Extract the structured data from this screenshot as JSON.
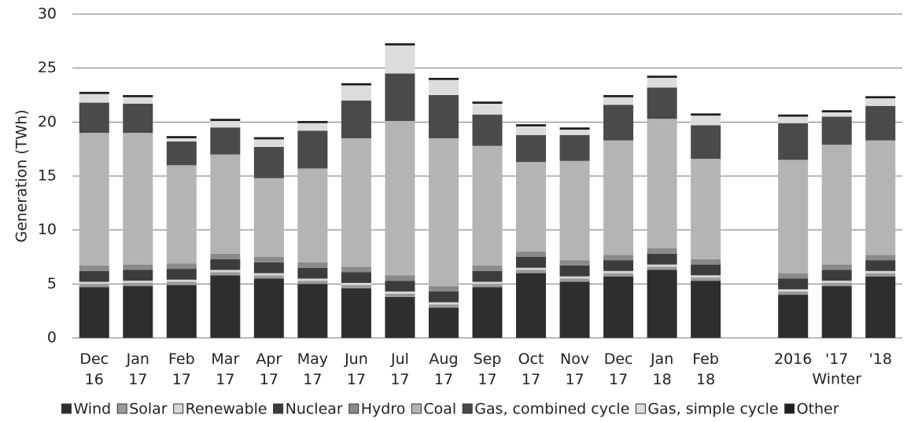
{
  "chart_data": {
    "type": "stacked_bar",
    "y_label": "Generation (TWh)",
    "annotation": "Winter",
    "categories": [
      [
        "Dec",
        "16"
      ],
      [
        "Jan",
        "17"
      ],
      [
        "Feb",
        "17"
      ],
      [
        "Mar",
        "17"
      ],
      [
        "Apr",
        "17"
      ],
      [
        "May",
        "17"
      ],
      [
        "Jun",
        "17"
      ],
      [
        "Jul",
        "17"
      ],
      [
        "Aug",
        "17"
      ],
      [
        "Sep",
        "17"
      ],
      [
        "Oct",
        "17"
      ],
      [
        "Nov",
        "17"
      ],
      [
        "Dec",
        "17"
      ],
      [
        "Jan",
        "18"
      ],
      [
        "Feb",
        "18"
      ],
      null,
      [
        "2016"
      ],
      [
        "'17"
      ],
      [
        "'18"
      ]
    ],
    "series": [
      {
        "name": "Wind",
        "color": "#2e2e2e",
        "values": [
          4.7,
          4.8,
          4.9,
          5.8,
          5.5,
          5.0,
          4.6,
          3.8,
          2.8,
          4.7,
          6.0,
          5.2,
          5.7,
          6.3,
          5.3,
          null,
          4.0,
          4.8,
          5.7
        ]
      },
      {
        "name": "Solar",
        "color": "#9a9a9a",
        "values": [
          0.3,
          0.3,
          0.3,
          0.3,
          0.3,
          0.3,
          0.3,
          0.3,
          0.3,
          0.3,
          0.3,
          0.3,
          0.3,
          0.3,
          0.3,
          null,
          0.3,
          0.3,
          0.3
        ]
      },
      {
        "name": "Renewable",
        "color": "#d6d6d6",
        "values": [
          0.2,
          0.2,
          0.2,
          0.2,
          0.2,
          0.2,
          0.2,
          0.2,
          0.2,
          0.2,
          0.2,
          0.2,
          0.2,
          0.2,
          0.2,
          null,
          0.2,
          0.2,
          0.2
        ]
      },
      {
        "name": "Nuclear",
        "color": "#3c3c3c",
        "values": [
          1.0,
          1.0,
          1.0,
          1.0,
          1.0,
          1.0,
          1.0,
          1.0,
          1.0,
          1.0,
          1.0,
          1.0,
          1.0,
          1.0,
          1.0,
          null,
          1.0,
          1.0,
          1.0
        ]
      },
      {
        "name": "Hydro",
        "color": "#8a8a8a",
        "values": [
          0.5,
          0.5,
          0.5,
          0.5,
          0.5,
          0.5,
          0.5,
          0.5,
          0.5,
          0.5,
          0.5,
          0.5,
          0.5,
          0.5,
          0.5,
          null,
          0.5,
          0.5,
          0.5
        ]
      },
      {
        "name": "Coal",
        "color": "#b4b4b4",
        "values": [
          12.3,
          12.2,
          9.1,
          9.2,
          7.3,
          8.7,
          11.9,
          14.3,
          13.7,
          11.1,
          8.3,
          9.2,
          10.6,
          12.0,
          9.3,
          null,
          10.5,
          11.1,
          10.6
        ]
      },
      {
        "name": "Gas, combined cycle",
        "color": "#4a4a4a",
        "values": [
          2.8,
          2.7,
          2.2,
          2.5,
          2.9,
          3.5,
          3.5,
          4.4,
          4.0,
          2.9,
          2.5,
          2.4,
          3.3,
          2.9,
          3.1,
          null,
          3.4,
          2.6,
          3.2
        ]
      },
      {
        "name": "Gas, simple cycle",
        "color": "#dcdcdc",
        "values": [
          0.8,
          0.6,
          0.3,
          0.6,
          0.7,
          0.7,
          1.4,
          2.6,
          1.4,
          1.0,
          0.8,
          0.5,
          0.7,
          0.9,
          0.9,
          null,
          0.6,
          0.4,
          0.7
        ]
      },
      {
        "name": "Other",
        "color": "#1e1e1e",
        "values": [
          0.2,
          0.2,
          0.2,
          0.2,
          0.2,
          0.2,
          0.2,
          0.2,
          0.2,
          0.2,
          0.2,
          0.2,
          0.2,
          0.2,
          0.2,
          null,
          0.2,
          0.2,
          0.2
        ]
      }
    ],
    "ylim": [
      0,
      30
    ],
    "yticks": [
      0,
      5,
      10,
      15,
      20,
      25,
      30
    ],
    "grid": true,
    "legend": "bottom"
  }
}
